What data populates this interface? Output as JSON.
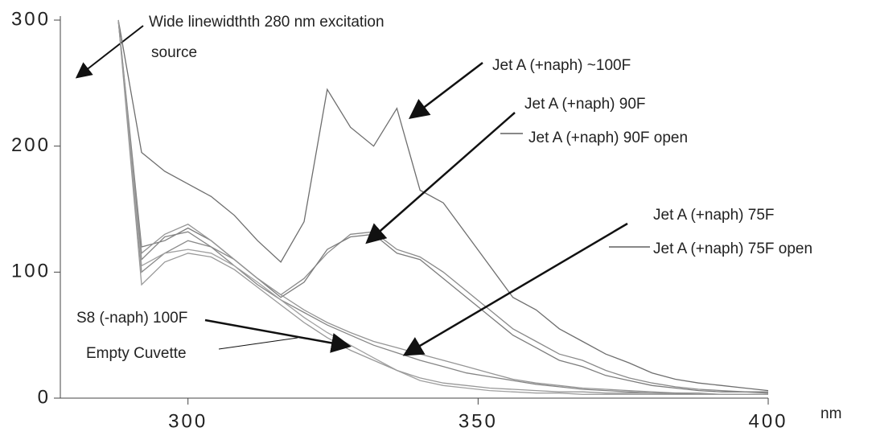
{
  "chart_data": {
    "type": "line",
    "x_label": "nm",
    "annotation": [
      "Wide linewidthth 280 nm excitation",
      "source"
    ],
    "x": [
      288,
      292,
      296,
      300,
      304,
      308,
      312,
      316,
      320,
      324,
      328,
      332,
      336,
      340,
      344,
      348,
      352,
      356,
      360,
      364,
      368,
      372,
      376,
      380,
      384,
      388,
      392,
      396,
      400
    ],
    "xlim": [
      278,
      400
    ],
    "xticks": [
      300,
      350,
      400
    ],
    "ylim": [
      0,
      300
    ],
    "yticks": [
      0,
      100,
      200,
      300
    ],
    "series": [
      {
        "name": "Jet A (+naph) ~100F",
        "color": "#6e6e6e",
        "values": [
          300,
          195,
          180,
          170,
          160,
          145,
          125,
          108,
          140,
          245,
          215,
          200,
          230,
          165,
          155,
          130,
          105,
          80,
          70,
          55,
          45,
          35,
          28,
          20,
          15,
          12,
          10,
          8,
          6
        ]
      },
      {
        "name": "Jet A (+naph) 90F",
        "color": "#8a8a8a",
        "values": [
          300,
          100,
          115,
          125,
          120,
          110,
          95,
          82,
          95,
          115,
          130,
          132,
          118,
          112,
          100,
          85,
          70,
          55,
          45,
          35,
          30,
          22,
          16,
          12,
          9,
          7,
          6,
          5,
          5
        ]
      },
      {
        "name": "Jet A (+naph) 90F open",
        "color": "#7c7c7c",
        "values": [
          300,
          120,
          125,
          135,
          125,
          110,
          95,
          80,
          92,
          118,
          128,
          130,
          115,
          110,
          95,
          80,
          65,
          50,
          40,
          30,
          25,
          18,
          14,
          10,
          8,
          6,
          5,
          5,
          4
        ]
      },
      {
        "name": "Jet A (+naph) 75F",
        "color": "#959595",
        "values": [
          300,
          115,
          130,
          138,
          125,
          110,
          95,
          82,
          70,
          60,
          52,
          45,
          40,
          35,
          30,
          25,
          20,
          15,
          12,
          10,
          8,
          7,
          6,
          5,
          4,
          4,
          3,
          3,
          3
        ]
      },
      {
        "name": "Jet A (+naph) 75F open",
        "color": "#858585",
        "values": [
          300,
          110,
          128,
          132,
          120,
          105,
          90,
          78,
          68,
          58,
          50,
          42,
          36,
          30,
          25,
          20,
          17,
          14,
          11,
          9,
          7,
          6,
          5,
          4,
          4,
          3,
          3,
          3,
          3
        ]
      },
      {
        "name": "S8 (-naph) 100F",
        "color": "#a0a0a0",
        "values": [
          300,
          105,
          115,
          118,
          115,
          105,
          92,
          78,
          64,
          52,
          42,
          32,
          22,
          14,
          10,
          8,
          6,
          5,
          4,
          4,
          3,
          3,
          3,
          3,
          3,
          3,
          3,
          3,
          3
        ]
      },
      {
        "name": "Empty Cuvette",
        "color": "#999999",
        "values": [
          300,
          90,
          108,
          115,
          112,
          102,
          88,
          74,
          60,
          48,
          38,
          30,
          22,
          16,
          12,
          10,
          8,
          7,
          6,
          5,
          5,
          4,
          4,
          4,
          3,
          3,
          3,
          3,
          3
        ]
      }
    ]
  }
}
